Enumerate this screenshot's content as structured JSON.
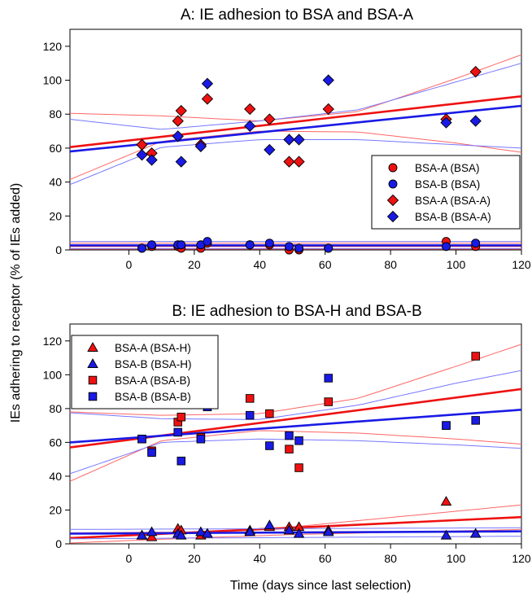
{
  "figure": {
    "shared_ylabel": "IEs adhering to receptor (% of IEs added)",
    "shared_xlabel": "Time (days since last selection)"
  },
  "colors": {
    "red": "#ee1111",
    "blue": "#1a1ae6",
    "red_light": "#ff6666",
    "blue_light": "#7777ff"
  },
  "chart_data": [
    {
      "type": "scatter",
      "title": "A: IE adhesion to BSA and BSA-A",
      "xlim": [
        -18,
        120
      ],
      "ylim": [
        0,
        130
      ],
      "x_ticks": [
        0,
        20,
        40,
        60,
        80,
        100,
        120
      ],
      "y_ticks": [
        0,
        20,
        40,
        60,
        80,
        100,
        120
      ],
      "legend_position": "right",
      "series": [
        {
          "name": "BSA-A (BSA)",
          "marker": "circle",
          "color": "red",
          "x": [
            4,
            7,
            15,
            16,
            22,
            24,
            37,
            43,
            49,
            52,
            61,
            97,
            106
          ],
          "y": [
            1,
            2,
            2,
            1,
            1,
            4,
            3,
            3,
            0,
            0,
            1,
            5,
            2
          ]
        },
        {
          "name": "BSA-B (BSA)",
          "marker": "circle",
          "color": "blue",
          "x": [
            4,
            7,
            15,
            16,
            22,
            24,
            37,
            43,
            49,
            52,
            61,
            97,
            106
          ],
          "y": [
            1,
            3,
            3,
            3,
            3,
            5,
            3,
            4,
            2,
            1,
            1,
            2,
            4
          ]
        },
        {
          "name": "BSA-A (BSA-A)",
          "marker": "diamond",
          "color": "red",
          "x": [
            4,
            7,
            15,
            16,
            22,
            24,
            37,
            43,
            49,
            52,
            61,
            97,
            106
          ],
          "y": [
            62,
            57,
            76,
            82,
            62,
            89,
            83,
            77,
            52,
            52,
            83,
            77,
            105
          ]
        },
        {
          "name": "BSA-B (BSA-A)",
          "marker": "diamond",
          "color": "blue",
          "x": [
            4,
            7,
            15,
            16,
            22,
            24,
            37,
            43,
            49,
            52,
            61,
            97,
            106
          ],
          "y": [
            56,
            53,
            67,
            52,
            61,
            98,
            73,
            59,
            65,
            65,
            100,
            75,
            76
          ]
        }
      ],
      "fits": [
        {
          "color": "red",
          "intercept": 64.5,
          "slope": 0.217,
          "ci_lower": [
            [
              -18,
              41.5
            ],
            [
              10,
              64
            ],
            [
              40,
              70
            ],
            [
              70,
              69.5
            ],
            [
              100,
              63
            ],
            [
              120,
              57.5
            ]
          ],
          "ci_upper": [
            [
              -18,
              80.5
            ],
            [
              10,
              79
            ],
            [
              40,
              76
            ],
            [
              70,
              81.5
            ],
            [
              100,
              101
            ],
            [
              120,
              115
            ]
          ]
        },
        {
          "color": "blue",
          "intercept": 61.5,
          "slope": 0.195,
          "ci_lower": [
            [
              -18,
              38.5
            ],
            [
              10,
              60.5
            ],
            [
              40,
              65
            ],
            [
              70,
              65
            ],
            [
              100,
              62
            ],
            [
              120,
              60
            ]
          ],
          "ci_upper": [
            [
              -18,
              77
            ],
            [
              10,
              71
            ],
            [
              40,
              76
            ],
            [
              70,
              82.5
            ],
            [
              100,
              99
            ],
            [
              120,
              110
            ]
          ]
        },
        {
          "color": "red",
          "intercept": 2.5,
          "slope": 0.0,
          "ci_lower": [
            [
              -18,
              0.5
            ],
            [
              120,
              0.5
            ]
          ],
          "ci_upper": [
            [
              -18,
              4
            ],
            [
              120,
              4
            ]
          ]
        },
        {
          "color": "blue",
          "intercept": 2.7,
          "slope": 0.0,
          "ci_lower": [
            [
              -18,
              0.8
            ],
            [
              120,
              0.8
            ]
          ],
          "ci_upper": [
            [
              -18,
              5
            ],
            [
              120,
              5
            ]
          ]
        }
      ]
    },
    {
      "type": "scatter",
      "title": "B: IE adhesion to BSA-H and BSA-B",
      "xlim": [
        -18,
        120
      ],
      "ylim": [
        0,
        130
      ],
      "x_ticks": [
        0,
        20,
        40,
        60,
        80,
        100,
        120
      ],
      "y_ticks": [
        0,
        20,
        40,
        60,
        80,
        100,
        120
      ],
      "legend_position": "top-left",
      "series": [
        {
          "name": "BSA-A (BSA-H)",
          "marker": "triangle",
          "color": "red",
          "x": [
            4,
            7,
            15,
            16,
            22,
            24,
            37,
            43,
            49,
            52,
            61,
            97,
            106
          ],
          "y": [
            5,
            4,
            9,
            8,
            5,
            6,
            8,
            10,
            10,
            10,
            8,
            25,
            6
          ]
        },
        {
          "name": "BSA-B (BSA-H)",
          "marker": "triangle",
          "color": "blue",
          "x": [
            4,
            7,
            15,
            16,
            22,
            24,
            37,
            43,
            49,
            52,
            61,
            97,
            106
          ],
          "y": [
            5,
            7,
            6,
            5,
            7,
            6,
            7,
            11,
            8,
            6,
            7,
            5,
            6
          ]
        },
        {
          "name": "BSA-A (BSA-B)",
          "marker": "square",
          "color": "red",
          "x": [
            4,
            7,
            15,
            16,
            22,
            24,
            37,
            43,
            49,
            52,
            61,
            97,
            106
          ],
          "y": [
            62,
            55,
            72,
            75,
            63,
            81,
            86,
            77,
            56,
            45,
            84,
            70,
            111
          ]
        },
        {
          "name": "BSA-B (BSA-B)",
          "marker": "square",
          "color": "blue",
          "x": [
            4,
            7,
            15,
            16,
            22,
            24,
            37,
            43,
            49,
            52,
            61,
            97,
            106
          ],
          "y": [
            62,
            54,
            66,
            49,
            62,
            81,
            76,
            58,
            64,
            61,
            98,
            70,
            73
          ]
        }
      ],
      "fits": [
        {
          "color": "red",
          "intercept": 61.5,
          "slope": 0.25,
          "ci_lower": [
            [
              -18,
              37
            ],
            [
              10,
              61
            ],
            [
              40,
              67
            ],
            [
              70,
              65.5
            ],
            [
              100,
              62
            ],
            [
              120,
              59
            ]
          ],
          "ci_upper": [
            [
              -18,
              78
            ],
            [
              10,
              76
            ],
            [
              40,
              77
            ],
            [
              70,
              86
            ],
            [
              100,
              105
            ],
            [
              120,
              118
            ]
          ]
        },
        {
          "color": "blue",
          "intercept": 62.5,
          "slope": 0.14,
          "ci_lower": [
            [
              -18,
              41.5
            ],
            [
              10,
              60
            ],
            [
              40,
              62
            ],
            [
              70,
              61
            ],
            [
              100,
              58.5
            ],
            [
              120,
              56.5
            ]
          ],
          "ci_upper": [
            [
              -18,
              77.5
            ],
            [
              10,
              74
            ],
            [
              40,
              73.5
            ],
            [
              70,
              82
            ],
            [
              100,
              95
            ],
            [
              120,
              102.5
            ]
          ]
        },
        {
          "color": "red",
          "intercept": 5,
          "slope": 0.09,
          "ci_lower": [
            [
              -18,
              0.5
            ],
            [
              20,
              3.5
            ],
            [
              50,
              5.5
            ],
            [
              120,
              8.5
            ]
          ],
          "ci_upper": [
            [
              -18,
              6.5
            ],
            [
              20,
              7
            ],
            [
              50,
              10
            ],
            [
              120,
              23
            ]
          ]
        },
        {
          "color": "blue",
          "intercept": 6.2,
          "slope": 0.01,
          "ci_lower": [
            [
              -18,
              3
            ],
            [
              120,
              4.5
            ]
          ],
          "ci_upper": [
            [
              -18,
              8.5
            ],
            [
              120,
              9.5
            ]
          ]
        }
      ]
    }
  ]
}
